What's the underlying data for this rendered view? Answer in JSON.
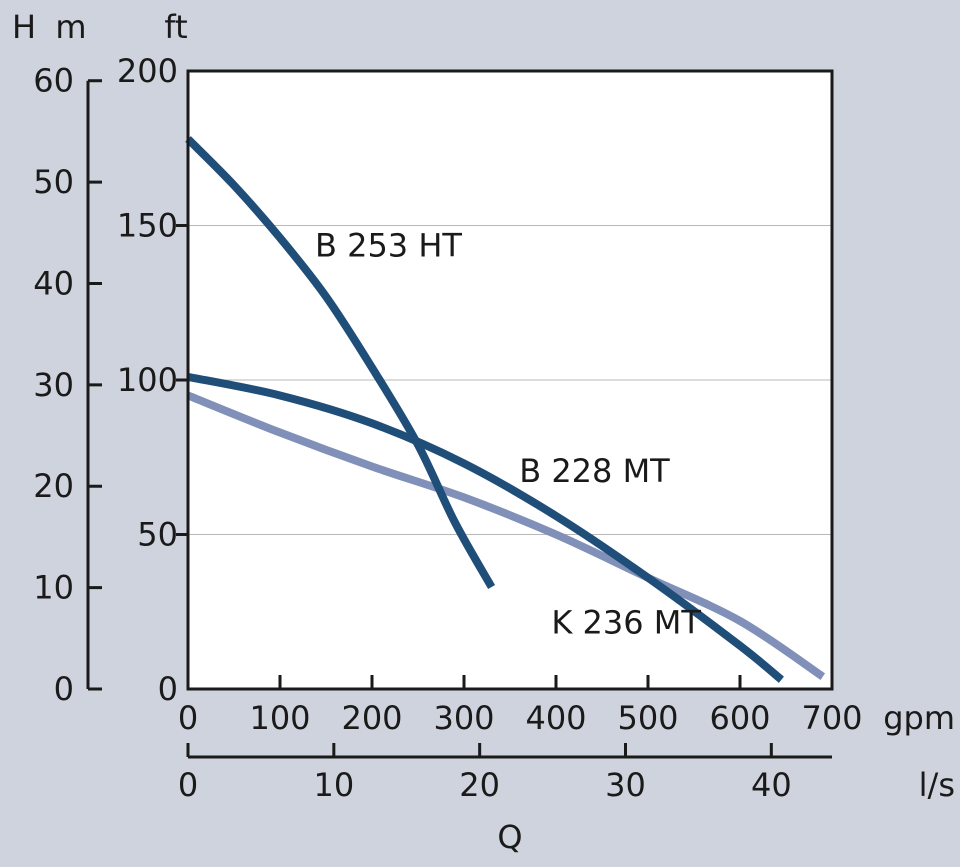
{
  "chart_data": {
    "type": "line",
    "x_axis_primary": {
      "unit": "gpm",
      "range": [
        0,
        700
      ],
      "ticks": [
        0,
        100,
        200,
        300,
        400,
        500,
        600,
        700
      ]
    },
    "x_axis_secondary": {
      "unit": "l/s",
      "range": [
        0,
        44.16
      ],
      "ticks": [
        0,
        10,
        20,
        30,
        40
      ]
    },
    "x_axis_label": "Q",
    "y_axis_primary": {
      "unit": "ft",
      "range": [
        0,
        200
      ],
      "ticks": [
        0,
        50,
        100,
        150,
        200
      ]
    },
    "y_axis_secondary": {
      "unit": "m",
      "range": [
        0,
        60.96
      ],
      "ticks": [
        0,
        10,
        20,
        30,
        40,
        50,
        60
      ]
    },
    "y_axis_label": "H",
    "grid": {
      "horizontal": true,
      "vertical": false,
      "lines_at_ft": [
        50,
        100,
        150
      ]
    },
    "series": [
      {
        "name": "B 253 HT",
        "color": "#1f4e79",
        "x": [
          0,
          50,
          100,
          150,
          200,
          250,
          290,
          330
        ],
        "y": [
          178,
          163,
          146,
          127,
          104,
          79,
          54,
          33
        ]
      },
      {
        "name": "B 228 MT",
        "color": "#1f4e79",
        "x": [
          0,
          100,
          200,
          300,
          400,
          500,
          600,
          645
        ],
        "y": [
          101,
          95,
          86,
          73,
          56,
          36,
          14,
          3
        ]
      },
      {
        "name": "K 236 MT",
        "color": "#8090b8",
        "x": [
          0,
          100,
          200,
          300,
          400,
          500,
          600,
          690
        ],
        "y": [
          95,
          83,
          72,
          62,
          50,
          36,
          22,
          4
        ]
      }
    ]
  }
}
